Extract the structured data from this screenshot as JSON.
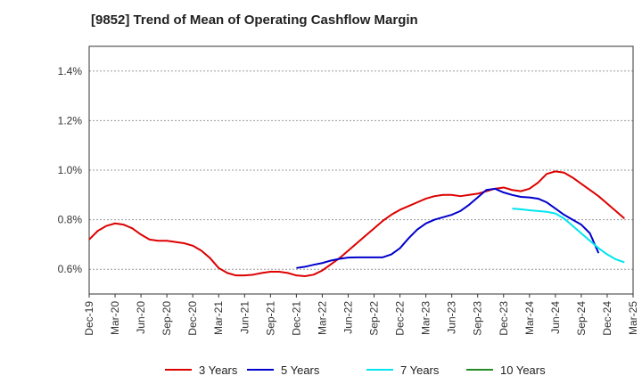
{
  "title": "[9852]  Trend of Mean of Operating Cashflow Margin",
  "chart_data": {
    "type": "line",
    "title": "[9852]  Trend of Mean of Operating Cashflow Margin",
    "xlabel": "",
    "ylabel": "",
    "x_tick_labels": [
      "Dec-19",
      "Mar-20",
      "Jun-20",
      "Sep-20",
      "Dec-20",
      "Mar-21",
      "Jun-21",
      "Sep-21",
      "Dec-21",
      "Mar-22",
      "Jun-22",
      "Sep-22",
      "Dec-22",
      "Mar-23",
      "Jun-23",
      "Sep-23",
      "Dec-23",
      "Mar-24",
      "Jun-24",
      "Sep-24",
      "Dec-24",
      "Mar-25"
    ],
    "y_tick_labels": [
      "0.6%",
      "0.8%",
      "1.0%",
      "1.2%",
      "1.4%"
    ],
    "ylim": [
      0.5,
      1.5
    ],
    "grid": true,
    "legend_position": "bottom",
    "series": [
      {
        "name": "3 Years",
        "color": "#dd0000",
        "start_index": 0,
        "values": [
          0.72,
          0.755,
          0.775,
          0.785,
          0.78,
          0.765,
          0.74,
          0.72,
          0.715,
          0.715,
          0.71,
          0.705,
          0.695,
          0.675,
          0.645,
          0.605,
          0.585,
          0.575,
          0.575,
          0.578,
          0.585,
          0.59,
          0.59,
          0.585,
          0.575,
          0.572,
          0.578,
          0.595,
          0.62,
          0.645,
          0.675,
          0.705,
          0.735,
          0.765,
          0.795,
          0.82,
          0.84,
          0.855,
          0.87,
          0.885,
          0.895,
          0.9,
          0.9,
          0.895,
          0.9,
          0.905,
          0.915,
          0.925,
          0.93,
          0.92,
          0.915,
          0.925,
          0.95,
          0.985,
          0.995,
          0.99,
          0.97,
          0.945,
          0.92,
          0.895,
          0.865,
          0.835,
          0.805
        ]
      },
      {
        "name": "5 Years",
        "color": "#0000cc",
        "start_index": 24,
        "values": [
          0.605,
          0.61,
          0.618,
          0.625,
          0.635,
          0.642,
          0.647,
          0.648,
          0.648,
          0.648,
          0.648,
          0.66,
          0.685,
          0.725,
          0.76,
          0.785,
          0.8,
          0.81,
          0.82,
          0.835,
          0.86,
          0.89,
          0.92,
          0.925,
          0.91,
          0.9,
          0.892,
          0.89,
          0.885,
          0.87,
          0.845,
          0.82,
          0.8,
          0.78,
          0.745,
          0.665
        ]
      },
      {
        "name": "7 Years",
        "color": "#00e5ee",
        "start_index": 49,
        "values": [
          0.845,
          0.842,
          0.838,
          0.835,
          0.832,
          0.825,
          0.805,
          0.775,
          0.745,
          0.715,
          0.685,
          0.66,
          0.64,
          0.628
        ]
      },
      {
        "name": "10 Years",
        "color": "#228b22",
        "start_index": 0,
        "values": []
      }
    ]
  }
}
